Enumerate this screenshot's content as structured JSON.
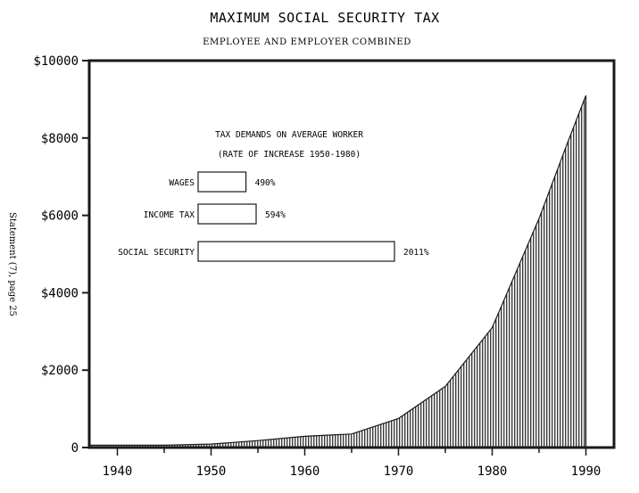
{
  "side_note": "Statement (7), page 25",
  "chart_data": {
    "type": "area",
    "title": "MAXIMUM SOCIAL SECURITY TAX",
    "subtitle": "EMPLOYEE AND EMPLOYER COMBINED",
    "xlabel": "",
    "ylabel": "",
    "xlim": [
      1937,
      1993
    ],
    "ylim": [
      0,
      10000
    ],
    "x_ticks": [
      1940,
      1950,
      1960,
      1970,
      1980,
      1990
    ],
    "x_tick_labels": [
      "1940",
      "1950",
      "1960",
      "1970",
      "1980",
      "1990"
    ],
    "y_ticks": [
      0,
      2000,
      4000,
      6000,
      8000,
      10000
    ],
    "y_tick_labels": [
      "0",
      "$2000",
      "$4000",
      "$6000",
      "$8000",
      "$10000"
    ],
    "grid": false,
    "fill": "vertical-hatch",
    "x": [
      1937,
      1940,
      1945,
      1950,
      1955,
      1960,
      1965,
      1970,
      1975,
      1980,
      1985,
      1988,
      1990
    ],
    "y": [
      60,
      60,
      60,
      90,
      180,
      290,
      350,
      750,
      1580,
      3100,
      5920,
      7850,
      9100
    ],
    "inset": {
      "type": "bar",
      "title": "TAX DEMANDS ON AVERAGE WORKER",
      "subtitle": "(RATE OF INCREASE 1950-1980)",
      "categories": [
        "WAGES",
        "INCOME TAX",
        "SOCIAL SECURITY"
      ],
      "values": [
        490,
        594,
        2011
      ],
      "value_labels": [
        "490%",
        "594%",
        "2011%"
      ]
    }
  },
  "colors": {
    "ink": "#1a1a1a",
    "background": "#ffffff"
  }
}
